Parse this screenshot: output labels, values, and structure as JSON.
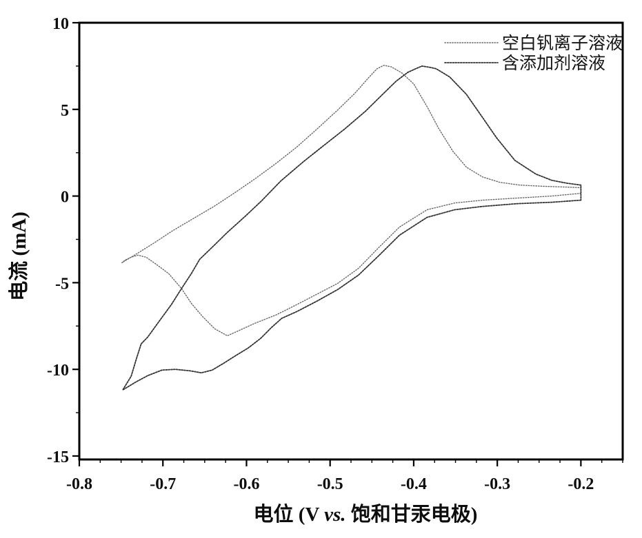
{
  "figure_type": "cyclic-voltammogram",
  "labels": {
    "xlabel_prefix": "电位 (V ",
    "xlabel_vs": "vs.",
    "xlabel_suffix": " 饱和甘汞电极)",
    "ylabel": "电流 (mA)"
  },
  "legend": {
    "items": [
      {
        "label": "空白钒离子溶液"
      },
      {
        "label": "含添加剂溶液"
      }
    ]
  },
  "chart_data": {
    "type": "line",
    "title": "",
    "xlabel": "电位 (V vs. 饱和甘汞电极)",
    "ylabel": "电流 (mA)",
    "xlim": [
      -0.8,
      -0.15
    ],
    "ylim": [
      -15.2,
      10
    ],
    "x_major_ticks": [
      -0.8,
      -0.7,
      -0.6,
      -0.5,
      -0.4,
      -0.3,
      -0.2
    ],
    "x_tick_labels": [
      "-0.8",
      "-0.7",
      "-0.6",
      "-0.5",
      "-0.4",
      "-0.3",
      "-0.2"
    ],
    "x_minor_step": 0.025,
    "y_major_ticks": [
      10,
      5,
      0,
      -5,
      -10,
      -15
    ],
    "y_tick_labels": [
      "10",
      "5",
      "0",
      "-5",
      "-10",
      "-15"
    ],
    "y_minor_step": 2.5,
    "grid": false,
    "legend_position": "top-right-inside",
    "key_features": {
      "blank_solution": {
        "anodic_peak": {
          "V": -0.436,
          "I_mA": 7.5
        },
        "cathodic_peak": {
          "V": -0.62,
          "I_mA": -8.1
        },
        "negative_reversal": {
          "V": -0.75,
          "I_mA": -3.9
        }
      },
      "additive_solution": {
        "anodic_peak": {
          "V": -0.39,
          "I_mA": 7.5
        },
        "cathodic_peak": {
          "V": -0.655,
          "I_mA": -10.2
        },
        "negative_reversal": {
          "V": -0.75,
          "I_mA": -11.2
        }
      }
    },
    "series": [
      {
        "name": "空白钒离子溶液",
        "style": {
          "color": "#666666",
          "width": 1.4,
          "dash": "1.4 2.2"
        },
        "points": [
          [
            -0.2,
            0.16
          ],
          [
            -0.235,
            0.0
          ],
          [
            -0.277,
            -0.12
          ],
          [
            -0.318,
            -0.24
          ],
          [
            -0.351,
            -0.4
          ],
          [
            -0.384,
            -0.79
          ],
          [
            -0.417,
            -1.79
          ],
          [
            -0.442,
            -2.98
          ],
          [
            -0.466,
            -4.17
          ],
          [
            -0.491,
            -5.04
          ],
          [
            -0.516,
            -5.67
          ],
          [
            -0.54,
            -6.27
          ],
          [
            -0.565,
            -6.87
          ],
          [
            -0.59,
            -7.34
          ],
          [
            -0.608,
            -7.74
          ],
          [
            -0.623,
            -8.06
          ],
          [
            -0.638,
            -7.66
          ],
          [
            -0.652,
            -6.98
          ],
          [
            -0.666,
            -6.19
          ],
          [
            -0.678,
            -5.32
          ],
          [
            -0.693,
            -4.48
          ],
          [
            -0.707,
            -3.97
          ],
          [
            -0.72,
            -3.53
          ],
          [
            -0.73,
            -3.41
          ],
          [
            -0.738,
            -3.53
          ],
          [
            -0.745,
            -3.69
          ],
          [
            -0.749,
            -3.85
          ],
          [
            -0.73,
            -3.29
          ],
          [
            -0.709,
            -2.66
          ],
          [
            -0.689,
            -2.02
          ],
          [
            -0.664,
            -1.31
          ],
          [
            -0.639,
            -0.6
          ],
          [
            -0.615,
            0.16
          ],
          [
            -0.59,
            0.99
          ],
          [
            -0.565,
            1.87
          ],
          [
            -0.54,
            2.82
          ],
          [
            -0.516,
            3.85
          ],
          [
            -0.491,
            4.96
          ],
          [
            -0.47,
            5.95
          ],
          [
            -0.454,
            6.83
          ],
          [
            -0.444,
            7.34
          ],
          [
            -0.436,
            7.54
          ],
          [
            -0.427,
            7.46
          ],
          [
            -0.414,
            7.1
          ],
          [
            -0.4,
            6.47
          ],
          [
            -0.384,
            5.16
          ],
          [
            -0.37,
            3.89
          ],
          [
            -0.353,
            2.58
          ],
          [
            -0.337,
            1.67
          ],
          [
            -0.318,
            1.11
          ],
          [
            -0.297,
            0.79
          ],
          [
            -0.273,
            0.63
          ],
          [
            -0.244,
            0.56
          ],
          [
            -0.219,
            0.52
          ],
          [
            -0.2,
            0.48
          ]
        ]
      },
      {
        "name": "含添加剂溶液",
        "style": {
          "color": "#333333",
          "width": 1.8,
          "dash": "2 1.8"
        },
        "points": [
          [
            -0.2,
            -0.24
          ],
          [
            -0.235,
            -0.36
          ],
          [
            -0.277,
            -0.44
          ],
          [
            -0.318,
            -0.6
          ],
          [
            -0.351,
            -0.79
          ],
          [
            -0.384,
            -1.23
          ],
          [
            -0.417,
            -2.26
          ],
          [
            -0.442,
            -3.45
          ],
          [
            -0.466,
            -4.56
          ],
          [
            -0.491,
            -5.4
          ],
          [
            -0.516,
            -6.07
          ],
          [
            -0.54,
            -6.67
          ],
          [
            -0.558,
            -7.06
          ],
          [
            -0.57,
            -7.58
          ],
          [
            -0.583,
            -8.21
          ],
          [
            -0.598,
            -8.77
          ],
          [
            -0.613,
            -9.21
          ],
          [
            -0.627,
            -9.64
          ],
          [
            -0.641,
            -10.04
          ],
          [
            -0.654,
            -10.2
          ],
          [
            -0.668,
            -10.08
          ],
          [
            -0.685,
            -10.0
          ],
          [
            -0.701,
            -10.04
          ],
          [
            -0.718,
            -10.36
          ],
          [
            -0.733,
            -10.75
          ],
          [
            -0.748,
            -11.19
          ],
          [
            -0.738,
            -10.4
          ],
          [
            -0.732,
            -9.44
          ],
          [
            -0.726,
            -8.53
          ],
          [
            -0.718,
            -8.13
          ],
          [
            -0.705,
            -7.26
          ],
          [
            -0.69,
            -6.27
          ],
          [
            -0.678,
            -5.36
          ],
          [
            -0.666,
            -4.48
          ],
          [
            -0.656,
            -3.65
          ],
          [
            -0.639,
            -2.86
          ],
          [
            -0.623,
            -2.1
          ],
          [
            -0.602,
            -1.19
          ],
          [
            -0.582,
            -0.28
          ],
          [
            -0.559,
            0.87
          ],
          [
            -0.532,
            1.98
          ],
          [
            -0.508,
            2.9
          ],
          [
            -0.483,
            3.85
          ],
          [
            -0.458,
            4.88
          ],
          [
            -0.438,
            5.83
          ],
          [
            -0.421,
            6.63
          ],
          [
            -0.407,
            7.14
          ],
          [
            -0.396,
            7.38
          ],
          [
            -0.39,
            7.5
          ],
          [
            -0.38,
            7.42
          ],
          [
            -0.373,
            7.34
          ],
          [
            -0.357,
            6.87
          ],
          [
            -0.337,
            5.87
          ],
          [
            -0.318,
            4.56
          ],
          [
            -0.301,
            3.37
          ],
          [
            -0.279,
            2.06
          ],
          [
            -0.254,
            1.27
          ],
          [
            -0.235,
            0.91
          ],
          [
            -0.218,
            0.75
          ],
          [
            -0.2,
            0.63
          ]
        ]
      }
    ]
  }
}
